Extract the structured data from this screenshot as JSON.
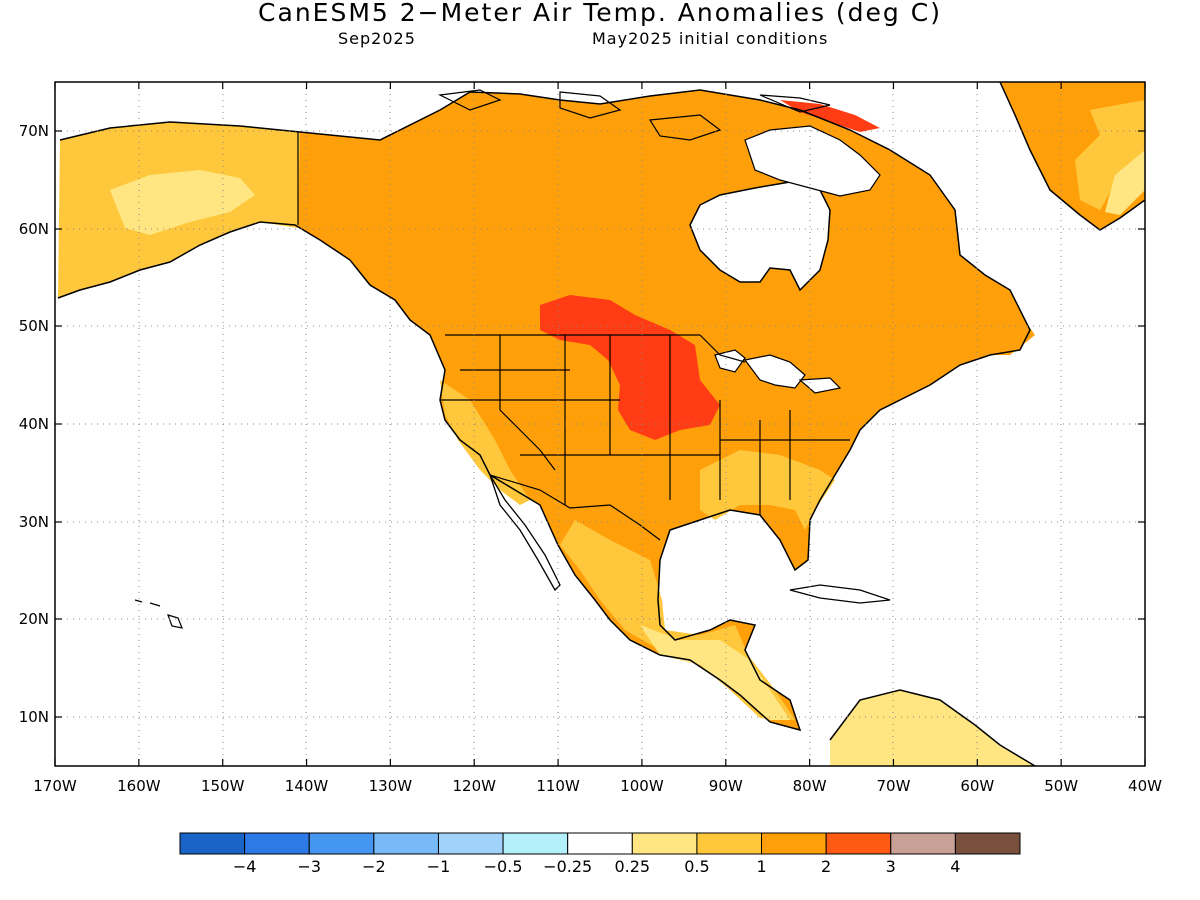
{
  "title": "CanESM5 2−Meter Air Temp. Anomalies (deg C)",
  "subtitle_left": "Sep2025",
  "subtitle_right": "May2025 initial conditions",
  "lat_labels": [
    "70N",
    "60N",
    "50N",
    "40N",
    "30N",
    "20N",
    "10N"
  ],
  "lon_labels": [
    "170W",
    "160W",
    "150W",
    "140W",
    "130W",
    "120W",
    "110W",
    "100W",
    "90W",
    "80W",
    "70W",
    "60W",
    "50W",
    "40W"
  ],
  "colorbar": {
    "colors": [
      "#1a64c8",
      "#2d7ae6",
      "#4496f0",
      "#78b9f7",
      "#a0d2fa",
      "#b4f0fa",
      "#ffffff",
      "#ffe682",
      "#ffc83c",
      "#ffa00a",
      "#ff5a14",
      "#c8a096",
      "#78503c"
    ],
    "labels": [
      "−4",
      "−3",
      "−2",
      "−1",
      "−0.5",
      "−0.25",
      "0.25",
      "0.5",
      "1",
      "2",
      "3",
      "4"
    ]
  },
  "anomaly_colors": {
    "land_base": "#ffa00a",
    "weak": "#ffc83c",
    "weakest": "#ffe682",
    "strong": "#ff3c14",
    "ocean": "#ffffff"
  }
}
